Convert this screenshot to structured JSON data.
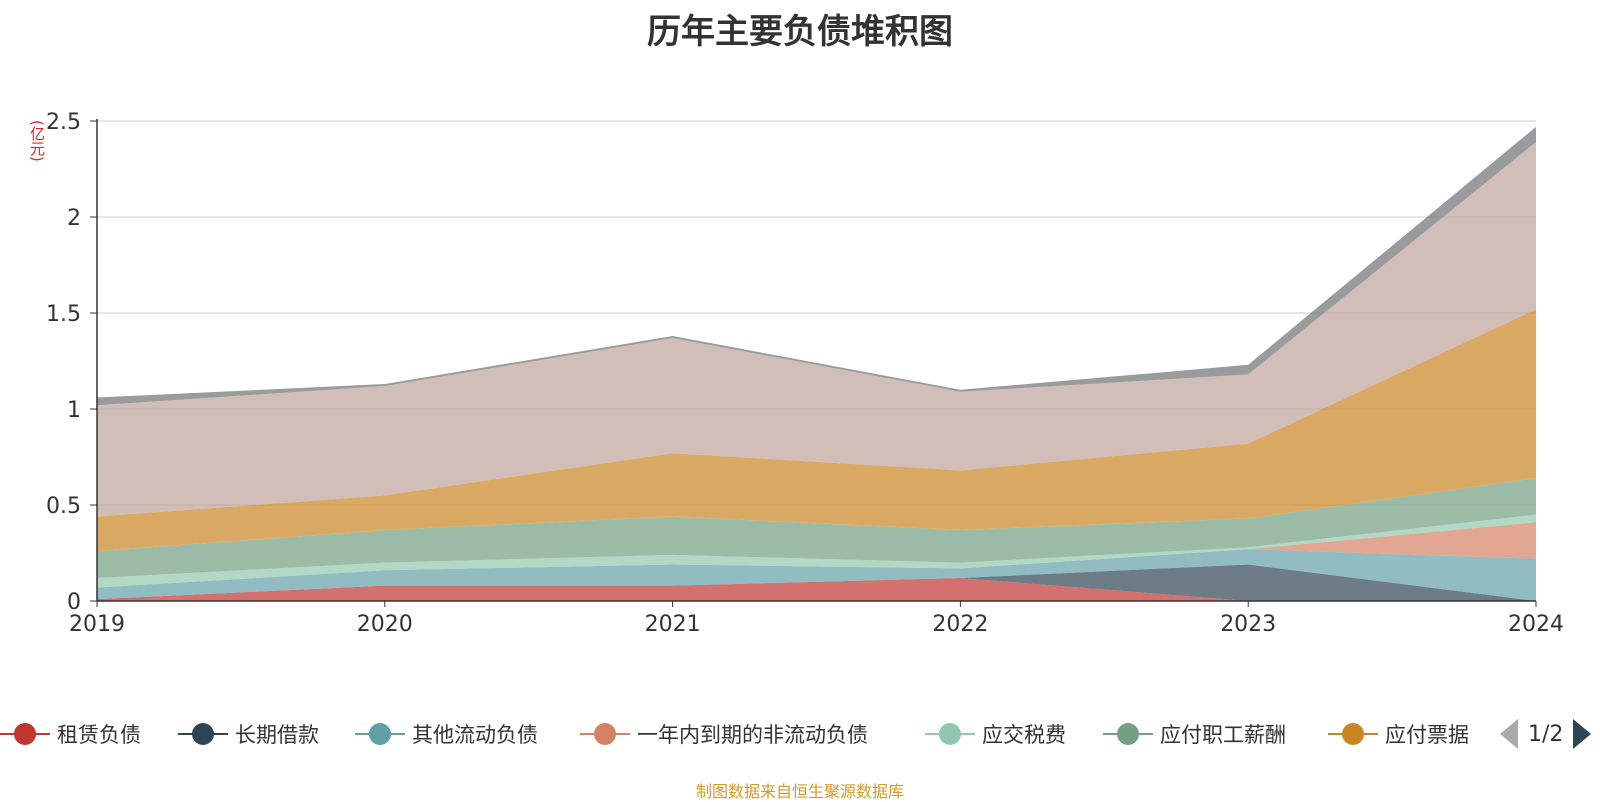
{
  "title": "历年主要负债堆积图",
  "unit": "(亿元)",
  "source": "制图数据来自恒生聚源数据库",
  "pager": "1/2",
  "chart_data": {
    "type": "area",
    "stacked": true,
    "x": [
      "2019",
      "2020",
      "2021",
      "2022",
      "2023",
      "2024"
    ],
    "ylim": [
      0,
      2.5
    ],
    "yticks": [
      "0",
      "0.5",
      "1",
      "1.5",
      "2",
      "2.5"
    ],
    "grid": true,
    "legend_position": "bottom",
    "series": [
      {
        "name": "租赁负债",
        "color": "#c23531",
        "values": [
          0.01,
          0.08,
          0.08,
          0.12,
          0.0,
          0.0
        ]
      },
      {
        "name": "长期借款",
        "color": "#2f4554",
        "values": [
          0.0,
          0.0,
          0.0,
          0.0,
          0.19,
          0.0
        ]
      },
      {
        "name": "其他流动负债",
        "color": "#61a0a8",
        "values": [
          0.06,
          0.08,
          0.11,
          0.05,
          0.08,
          0.22
        ]
      },
      {
        "name": "一年内到期的非流动负债",
        "color": "#d48265",
        "values": [
          0.0,
          0.0,
          0.0,
          0.0,
          0.0,
          0.19
        ]
      },
      {
        "name": "应交税费",
        "color": "#91c7ae",
        "values": [
          0.05,
          0.04,
          0.05,
          0.03,
          0.01,
          0.04
        ]
      },
      {
        "name": "应付职工薪酬",
        "color": "#749f83",
        "values": [
          0.14,
          0.17,
          0.2,
          0.17,
          0.15,
          0.19
        ]
      },
      {
        "name": "应付票据",
        "color": "#ca8622",
        "values": [
          0.18,
          0.18,
          0.33,
          0.31,
          0.39,
          0.88
        ]
      },
      {
        "name": "",
        "color": "#bda29a",
        "values": [
          0.58,
          0.57,
          0.6,
          0.41,
          0.36,
          0.87
        ]
      },
      {
        "name": "",
        "color": "#6e7074",
        "values": [
          0.04,
          0.01,
          0.01,
          0.01,
          0.05,
          0.08
        ]
      }
    ]
  }
}
